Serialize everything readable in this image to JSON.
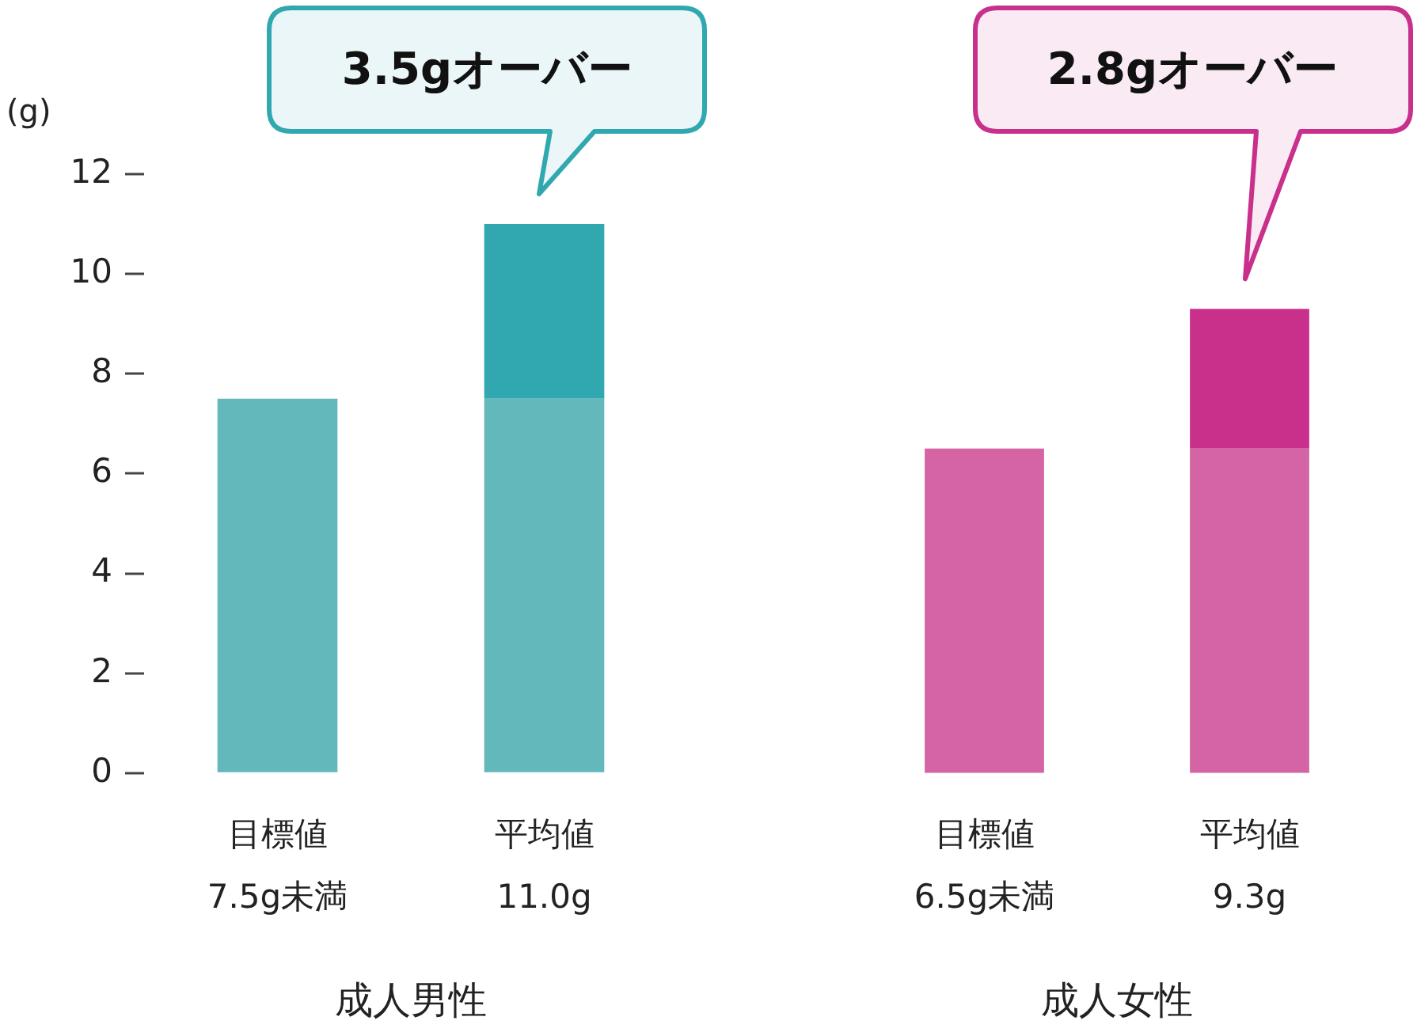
{
  "chart_data": [
    {
      "type": "bar",
      "stacked": true,
      "ylabel": "(g)",
      "xlabel": "成人男性",
      "categories": [
        "目標値\n7.5g未満",
        "平均値\n11.0g"
      ],
      "series": [
        {
          "color": "#63b8bb",
          "values": [
            7.5,
            7.5
          ]
        },
        {
          "color": "#31a8b0",
          "values": [
            null,
            3.5
          ]
        }
      ],
      "ylim": [
        0,
        12
      ],
      "yticks": [
        0,
        2,
        4,
        6,
        8,
        10,
        12
      ],
      "legend": false,
      "annotations": [
        "3.5gオーバー"
      ]
    },
    {
      "type": "bar",
      "stacked": true,
      "xlabel": "成人女性",
      "categories": [
        "目標値\n6.5g未満",
        "平均値\n9.3g"
      ],
      "series": [
        {
          "color": "#d464a4",
          "values": [
            6.5,
            6.5
          ]
        },
        {
          "color": "#c9308c",
          "values": [
            null,
            2.8
          ]
        }
      ],
      "ylim": [
        0,
        12
      ],
      "yticks": [
        0,
        2,
        4,
        6,
        8,
        10,
        12
      ],
      "legend": false,
      "tick_labels": "x",
      "annotations": [
        "2.8gオーバー"
      ]
    }
  ]
}
